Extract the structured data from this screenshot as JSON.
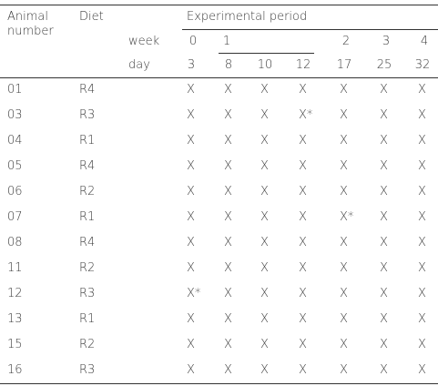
{
  "table": {
    "header": {
      "animal": "Animal number",
      "diet": "Diet",
      "period": "Experimental period",
      "week_label": "week",
      "day_label": "day",
      "weeks": [
        0,
        1,
        null,
        null,
        2,
        3,
        4
      ],
      "days": [
        3,
        8,
        10,
        12,
        17,
        25,
        32
      ]
    },
    "rows": [
      {
        "animal": "01",
        "diet": "R4",
        "cells": [
          "X",
          "X",
          "X",
          "X",
          "X",
          "X",
          "X"
        ]
      },
      {
        "animal": "03",
        "diet": "R3",
        "cells": [
          "X",
          "X",
          "X",
          "X*",
          "X",
          "X",
          "X"
        ]
      },
      {
        "animal": "04",
        "diet": "R1",
        "cells": [
          "X",
          "X",
          "X",
          "X",
          "X",
          "X",
          "X"
        ]
      },
      {
        "animal": "05",
        "diet": "R4",
        "cells": [
          "X",
          "X",
          "X",
          "X",
          "X",
          "X",
          "X"
        ]
      },
      {
        "animal": "06",
        "diet": "R2",
        "cells": [
          "X",
          "X",
          "X",
          "X",
          "X",
          "X",
          "X"
        ]
      },
      {
        "animal": "07",
        "diet": "R1",
        "cells": [
          "X",
          "X",
          "X",
          "X",
          "X*",
          "X",
          "X"
        ]
      },
      {
        "animal": "08",
        "diet": "R4",
        "cells": [
          "X",
          "X",
          "X",
          "X",
          "X",
          "X",
          "X"
        ]
      },
      {
        "animal": "11",
        "diet": "R2",
        "cells": [
          "X",
          "X",
          "X",
          "X",
          "X",
          "X",
          "X"
        ]
      },
      {
        "animal": "12",
        "diet": "R3",
        "cells": [
          "X*",
          "X",
          "X",
          "X",
          "X",
          "X",
          "X"
        ]
      },
      {
        "animal": "13",
        "diet": "R1",
        "cells": [
          "X",
          "X",
          "X",
          "X",
          "X",
          "X",
          "X"
        ]
      },
      {
        "animal": "15",
        "diet": "R2",
        "cells": [
          "X",
          "X",
          "X",
          "X",
          "X",
          "X",
          "X"
        ]
      },
      {
        "animal": "16",
        "diet": "R3",
        "cells": [
          "X",
          "X",
          "X",
          "X",
          "X",
          "X",
          "X"
        ]
      }
    ]
  }
}
